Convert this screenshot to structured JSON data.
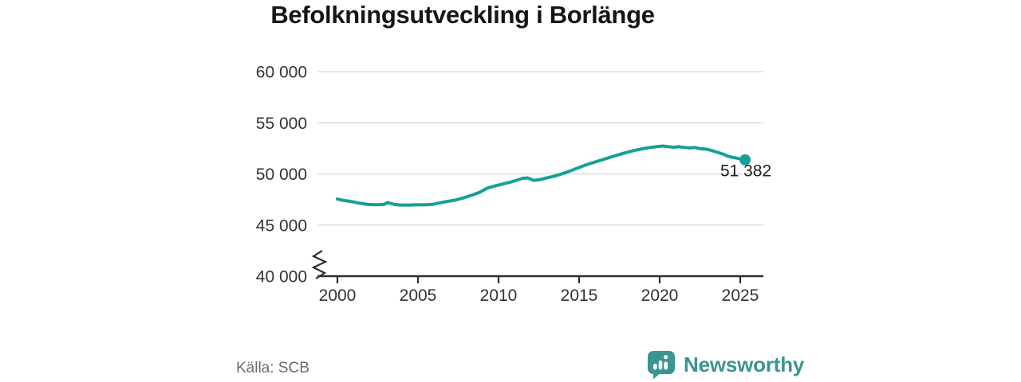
{
  "title": "Befolkningsutveckling i Borlänge",
  "source": "Källa: SCB",
  "branding": {
    "name": "Newsworthy",
    "icon": "newsworthy-bars-bubble-icon",
    "color": "#3a9491"
  },
  "chart_data": {
    "type": "line",
    "title": "Befolkningsutveckling i Borlänge",
    "xlabel": "",
    "ylabel": "",
    "x_ticks": [
      2000,
      2005,
      2010,
      2015,
      2020,
      2025
    ],
    "y_ticks": [
      60000,
      55000,
      50000,
      45000,
      40000
    ],
    "y_tick_labels": [
      "60 000",
      "55 000",
      "50 000",
      "45 000",
      "40 000"
    ],
    "xlim": [
      1998.8,
      2026.4
    ],
    "ylim": [
      40000,
      60000
    ],
    "grid": "horizontal",
    "axis_break_at_y_min": true,
    "legend": "none",
    "end_label": {
      "value": 51382,
      "text": "51 382"
    },
    "colors": {
      "line": "#16a096",
      "grid": "#dcdcdc",
      "axis": "#2e2e2e",
      "axis_text": "#333333",
      "end_label_text": "#1f1f1f"
    },
    "series": [
      {
        "name": "Befolkning i Borlänge",
        "color": "#16a096",
        "points": [
          [
            2000.0,
            47540
          ],
          [
            2000.4,
            47400
          ],
          [
            2000.9,
            47290
          ],
          [
            2001.4,
            47130
          ],
          [
            2001.9,
            47010
          ],
          [
            2002.4,
            46990
          ],
          [
            2002.9,
            47020
          ],
          [
            2003.1,
            47200
          ],
          [
            2003.5,
            47030
          ],
          [
            2003.9,
            46960
          ],
          [
            2004.4,
            46950
          ],
          [
            2004.9,
            46990
          ],
          [
            2005.4,
            46970
          ],
          [
            2005.9,
            47020
          ],
          [
            2006.3,
            47150
          ],
          [
            2006.8,
            47300
          ],
          [
            2007.3,
            47430
          ],
          [
            2007.8,
            47640
          ],
          [
            2008.3,
            47900
          ],
          [
            2008.8,
            48180
          ],
          [
            2009.3,
            48610
          ],
          [
            2009.8,
            48840
          ],
          [
            2010.3,
            49020
          ],
          [
            2010.8,
            49230
          ],
          [
            2011.2,
            49420
          ],
          [
            2011.5,
            49570
          ],
          [
            2011.8,
            49600
          ],
          [
            2012.2,
            49360
          ],
          [
            2012.6,
            49450
          ],
          [
            2013.0,
            49620
          ],
          [
            2013.4,
            49750
          ],
          [
            2013.9,
            49990
          ],
          [
            2014.4,
            50260
          ],
          [
            2014.9,
            50570
          ],
          [
            2015.4,
            50860
          ],
          [
            2015.9,
            51120
          ],
          [
            2016.4,
            51360
          ],
          [
            2016.9,
            51600
          ],
          [
            2017.4,
            51850
          ],
          [
            2017.9,
            52080
          ],
          [
            2018.4,
            52280
          ],
          [
            2018.9,
            52440
          ],
          [
            2019.4,
            52580
          ],
          [
            2019.9,
            52680
          ],
          [
            2020.2,
            52720
          ],
          [
            2020.5,
            52660
          ],
          [
            2020.9,
            52610
          ],
          [
            2021.2,
            52660
          ],
          [
            2021.5,
            52580
          ],
          [
            2021.9,
            52540
          ],
          [
            2022.2,
            52580
          ],
          [
            2022.5,
            52470
          ],
          [
            2022.9,
            52420
          ],
          [
            2023.2,
            52300
          ],
          [
            2023.5,
            52150
          ],
          [
            2023.9,
            51950
          ],
          [
            2024.2,
            51760
          ],
          [
            2024.5,
            51620
          ],
          [
            2024.9,
            51500
          ],
          [
            2025.1,
            51430
          ],
          [
            2025.3,
            51382
          ]
        ]
      }
    ]
  }
}
